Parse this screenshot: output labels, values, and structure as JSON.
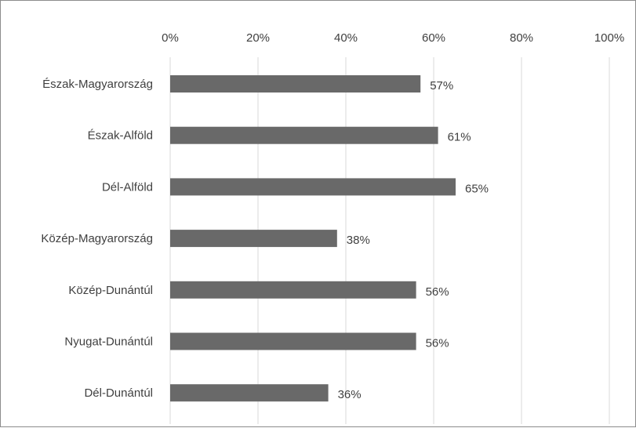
{
  "chart_data": {
    "type": "bar",
    "orientation": "horizontal",
    "categories": [
      "Észak-Magyarország",
      "Észak-Alföld",
      "Dél-Alföld",
      "Közép-Magyarország",
      "Közép-Dunántúl",
      "Nyugat-Dunántúl",
      "Dél-Dunántúl"
    ],
    "values": [
      57,
      61,
      65,
      38,
      56,
      56,
      36
    ],
    "value_labels": [
      "57%",
      "61%",
      "65%",
      "38%",
      "56%",
      "56%",
      "36%"
    ],
    "xlim": [
      0,
      100
    ],
    "x_ticks": [
      0,
      20,
      40,
      60,
      80,
      100
    ],
    "x_tick_labels": [
      "0%",
      "20%",
      "40%",
      "60%",
      "80%",
      "100%"
    ],
    "x_axis_position": "top",
    "grid": true,
    "legend": "none",
    "colors": {
      "bar": "#696969",
      "grid": "#d9d9d9",
      "text": "#404040",
      "border": "#8c8c8c"
    }
  }
}
